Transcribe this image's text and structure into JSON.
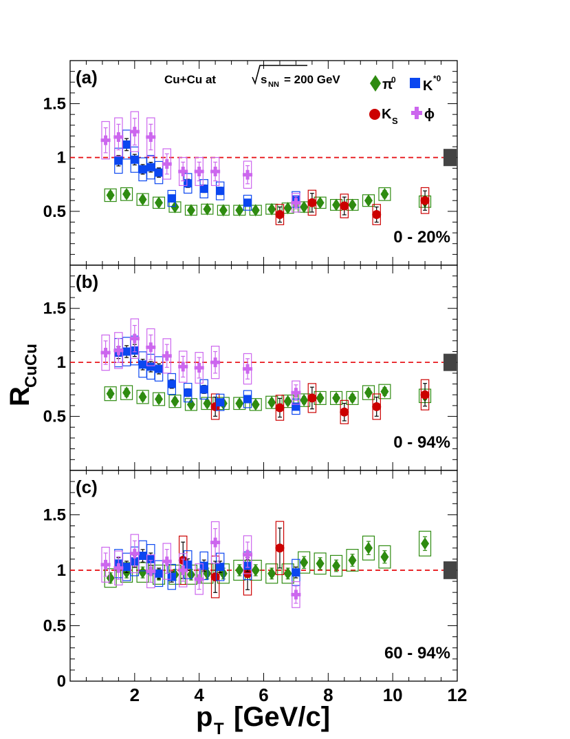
{
  "colors": {
    "pi0": "#2e8b10",
    "kstar": "#0b47f0",
    "ks": "#cc0000",
    "phi": "#cc66ee",
    "reference": "#e8171b",
    "norm_box": "#444444"
  },
  "legend": {
    "system_prefix": "Cu+Cu  at",
    "sqrt_symbol": "√",
    "energy_s": "s",
    "energy_sub": "NN",
    "energy_value": "= 200 GeV",
    "pi0_base": "π",
    "pi0_sup": "0",
    "kstar_base": "K",
    "kstar_sup": "*0",
    "ks_base": "K",
    "ks_sub": "S",
    "phi_label": "ϕ"
  },
  "axes": {
    "y_title_base": "R",
    "y_title_sub": "CuCu",
    "x_title_base": "p",
    "x_title_sub": "T",
    "x_title_unit": "[GeV/c]",
    "x_ticks": [
      "2",
      "4",
      "6",
      "8",
      "10",
      "12"
    ],
    "y_ticks_a": [
      "0.5",
      "1",
      "1.5"
    ],
    "y_ticks_b": [
      "0.5",
      "1",
      "1.5"
    ],
    "y_ticks_c": [
      "0",
      "0.5",
      "1",
      "1.5"
    ]
  },
  "chart_data": [
    {
      "type": "scatter",
      "panel": "(a)",
      "centrality": "0 - 20%",
      "xlim": [
        0,
        12
      ],
      "ylim": [
        0,
        1.9
      ],
      "reference_line": 1,
      "series": [
        {
          "name": "pi0",
          "x": [
            1.25,
            1.75,
            2.25,
            2.75,
            3.25,
            3.75,
            4.25,
            4.75,
            5.25,
            5.75,
            6.25,
            6.75,
            7.25,
            7.75,
            8.25,
            8.75,
            9.25,
            9.75,
            11.0
          ],
          "y": [
            0.65,
            0.66,
            0.61,
            0.58,
            0.54,
            0.51,
            0.52,
            0.51,
            0.51,
            0.51,
            0.52,
            0.53,
            0.54,
            0.58,
            0.56,
            0.56,
            0.6,
            0.66,
            0.59
          ]
        },
        {
          "name": "kstar",
          "x": [
            1.5,
            1.75,
            2.0,
            2.25,
            2.5,
            2.75,
            3.15,
            3.65,
            4.15,
            4.65,
            5.5,
            7.0
          ],
          "y": [
            0.97,
            1.12,
            0.98,
            0.89,
            0.91,
            0.86,
            0.62,
            0.76,
            0.71,
            0.69,
            0.58,
            0.61
          ]
        },
        {
          "name": "ks",
          "x": [
            6.5,
            7.5,
            8.5,
            9.5,
            11.0
          ],
          "y": [
            0.47,
            0.58,
            0.55,
            0.47,
            0.6
          ]
        },
        {
          "name": "phi",
          "x": [
            1.1,
            1.5,
            2.0,
            2.5,
            3.0,
            3.5,
            4.0,
            4.5,
            5.5,
            7.0
          ],
          "y": [
            1.16,
            1.19,
            1.24,
            1.19,
            0.94,
            0.87,
            0.87,
            0.87,
            0.84,
            0.58
          ]
        }
      ]
    },
    {
      "type": "scatter",
      "panel": "(b)",
      "centrality": "0 - 94%",
      "xlim": [
        0,
        12
      ],
      "ylim": [
        0,
        1.9
      ],
      "reference_line": 1,
      "series": [
        {
          "name": "pi0",
          "x": [
            1.25,
            1.75,
            2.25,
            2.75,
            3.25,
            3.75,
            4.25,
            4.75,
            5.25,
            5.75,
            6.25,
            6.75,
            7.25,
            7.75,
            8.25,
            8.75,
            9.25,
            9.75,
            11.0
          ],
          "y": [
            0.71,
            0.72,
            0.68,
            0.66,
            0.64,
            0.61,
            0.62,
            0.62,
            0.62,
            0.61,
            0.63,
            0.64,
            0.65,
            0.67,
            0.67,
            0.67,
            0.72,
            0.73,
            0.69
          ]
        },
        {
          "name": "kstar",
          "x": [
            1.5,
            1.75,
            2.0,
            2.25,
            2.5,
            2.75,
            3.15,
            3.65,
            4.15,
            4.65,
            5.5,
            7.0
          ],
          "y": [
            1.09,
            1.1,
            1.11,
            0.98,
            0.96,
            0.94,
            0.8,
            0.72,
            0.75,
            0.63,
            0.66,
            0.59
          ]
        },
        {
          "name": "ks",
          "x": [
            4.5,
            6.5,
            7.5,
            8.5,
            9.5,
            11.0
          ],
          "y": [
            0.59,
            0.58,
            0.67,
            0.54,
            0.59,
            0.7
          ]
        },
        {
          "name": "phi",
          "x": [
            1.1,
            1.5,
            2.0,
            2.5,
            3.0,
            3.5,
            4.0,
            4.5,
            5.5,
            7.0
          ],
          "y": [
            1.09,
            1.11,
            1.22,
            1.14,
            1.06,
            0.96,
            0.95,
            1.0,
            0.94,
            0.72
          ]
        }
      ]
    },
    {
      "type": "scatter",
      "panel": "(c)",
      "centrality": "60 - 94%",
      "xlim": [
        0,
        12
      ],
      "ylim": [
        0,
        1.9
      ],
      "reference_line": 1,
      "series": [
        {
          "name": "pi0",
          "x": [
            1.25,
            1.75,
            2.25,
            2.75,
            3.25,
            3.75,
            4.25,
            4.75,
            5.25,
            5.75,
            6.25,
            6.75,
            7.25,
            7.75,
            8.25,
            8.75,
            9.25,
            9.75,
            11.0
          ],
          "y": [
            0.93,
            0.98,
            0.98,
            0.96,
            0.96,
            0.96,
            0.97,
            0.97,
            1.0,
            1.0,
            0.97,
            0.97,
            1.07,
            1.06,
            1.04,
            1.09,
            1.2,
            1.12,
            1.24
          ]
        },
        {
          "name": "kstar",
          "x": [
            1.5,
            1.75,
            2.0,
            2.25,
            2.5,
            2.75,
            3.15,
            3.65,
            4.15,
            4.65,
            5.5,
            7.0
          ],
          "y": [
            1.06,
            1.03,
            1.08,
            1.13,
            1.1,
            0.97,
            0.94,
            1.05,
            1.04,
            1.03,
            1.04,
            0.98
          ]
        },
        {
          "name": "ks",
          "x": [
            3.5,
            4.5,
            5.5,
            6.5
          ],
          "y": [
            1.09,
            0.94,
            0.97,
            1.2
          ]
        },
        {
          "name": "phi",
          "x": [
            1.1,
            1.5,
            2.0,
            2.5,
            3.0,
            3.5,
            4.0,
            4.5,
            5.5,
            7.0
          ],
          "y": [
            1.05,
            1.02,
            1.15,
            0.99,
            1.08,
            1.0,
            0.92,
            1.25,
            1.14,
            0.78
          ]
        }
      ]
    }
  ]
}
